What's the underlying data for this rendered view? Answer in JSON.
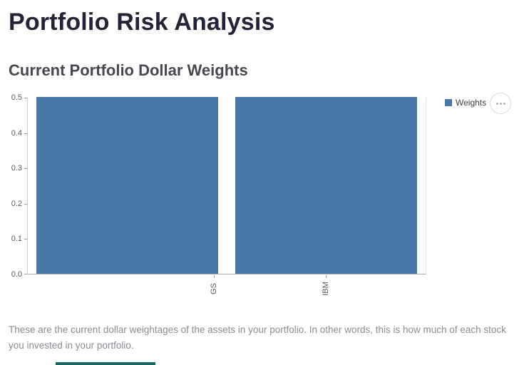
{
  "page": {
    "title": "Portfolio Risk Analysis",
    "description": "These are the current dollar weightages of the assets in your portfolio. In other words, this is how much of each stock you invested in your portfolio."
  },
  "chart": {
    "legend": {
      "label": "Weights",
      "swatch_color": "#4878a8"
    }
  },
  "chart_data": {
    "type": "bar",
    "title": "Current Portfolio Dollar Weights",
    "categories": [
      "GS",
      "IBM"
    ],
    "series": [
      {
        "name": "Weights",
        "values": [
          0.5,
          0.5
        ]
      }
    ],
    "xlabel": "",
    "ylabel": "",
    "ylim": [
      0,
      0.5
    ],
    "yticks": [
      0,
      0.1,
      0.2,
      0.3,
      0.4,
      0.5
    ],
    "bar_color": "#4878a8",
    "legend_position": "top-right",
    "grid": false,
    "x_tick_rotation": 90
  }
}
